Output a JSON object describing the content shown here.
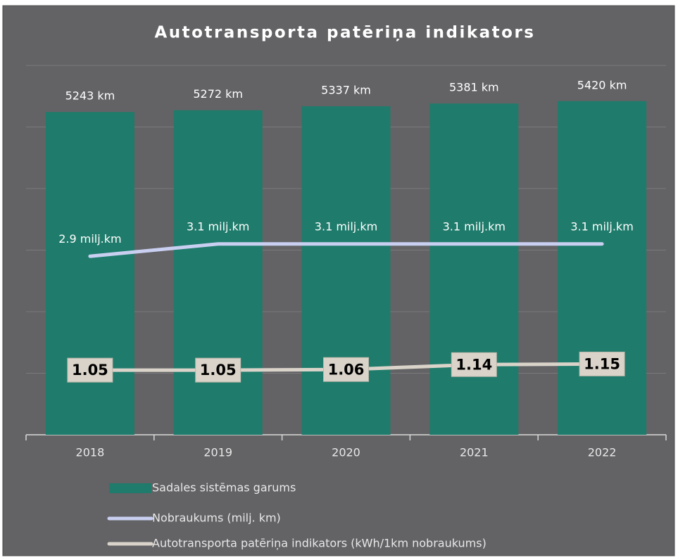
{
  "chart_data": {
    "type": "bar",
    "title": "Autotransporta patēriņa indikators",
    "categories": [
      "2018",
      "2019",
      "2020",
      "2021",
      "2022"
    ],
    "series": [
      {
        "name": "Sadales sistēmas garums",
        "type": "bar",
        "color": "#1f7b6b",
        "values": [
          5243,
          5272,
          5337,
          5381,
          5420
        ],
        "value_labels": [
          "5243 km",
          "5272 km",
          "5337 km",
          "5381 km",
          "5420 km"
        ]
      },
      {
        "name": "Nobraukums (milj. km)",
        "type": "line",
        "axis": "y2",
        "color": "#c9cff0",
        "values": [
          2.9,
          3.1,
          3.1,
          3.1,
          3.1
        ],
        "value_labels": [
          "2.9 milj.km",
          "3.1 milj.km",
          "3.1 milj.km",
          "3.1 milj.km",
          "3.1 milj.km"
        ]
      },
      {
        "name": "Autotransporta patēriņa indikators (kWh/1km nobraukums)",
        "type": "line",
        "axis": "y2",
        "color": "#d9d3c9",
        "values": [
          1.05,
          1.05,
          1.06,
          1.14,
          1.15
        ]
      }
    ],
    "ylim": [
      0,
      6000
    ],
    "yticks": [
      0,
      1000,
      2000,
      3000,
      4000,
      5000,
      6000
    ],
    "y2lim": [
      0,
      6
    ],
    "grid": true
  }
}
